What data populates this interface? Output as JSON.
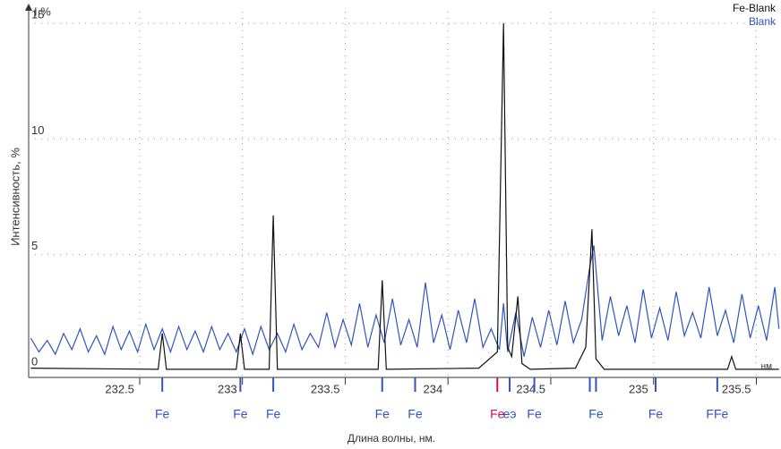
{
  "chart_data": {
    "type": "line",
    "y_label": "Интенсивность, %",
    "x_label": "Длина волны, нм.",
    "y_unit_label": "I,%",
    "x_unit_label": "нм",
    "xlim": [
      231.96,
      235.62
    ],
    "ylim": [
      -0.3,
      15.5
    ],
    "xticks": [
      232.5,
      233,
      233.5,
      234,
      234.5,
      235,
      235.5
    ],
    "yticks": [
      0,
      5,
      10,
      15
    ],
    "grid": true,
    "legend": "top-right",
    "series": [
      {
        "name": "Fe-Blank",
        "color": "#111111",
        "x": [
          231.97,
          232.59,
          232.61,
          232.63,
          232.97,
          232.99,
          233.01,
          233.13,
          233.15,
          233.17,
          233.66,
          233.68,
          233.7,
          234.15,
          234.24,
          234.27,
          234.29,
          234.31,
          234.34,
          234.36,
          234.4,
          234.62,
          234.67,
          234.7,
          234.72,
          234.76,
          235.36,
          235.38,
          235.4,
          235.61
        ],
        "values": [
          0.1,
          0.05,
          1.6,
          0.05,
          0.05,
          1.6,
          0.05,
          0.05,
          6.7,
          0.05,
          0.05,
          3.9,
          0.05,
          0.1,
          0.8,
          15.0,
          1.0,
          0.6,
          3.2,
          0.3,
          0.05,
          0.1,
          1.0,
          6.1,
          0.5,
          0.05,
          0.05,
          0.6,
          0.05,
          0.05
        ]
      },
      {
        "name": "Blank",
        "color": "#2f55c0",
        "x": [
          231.97,
          232.01,
          232.05,
          232.09,
          232.13,
          232.17,
          232.21,
          232.25,
          232.29,
          232.33,
          232.37,
          232.41,
          232.45,
          232.49,
          232.53,
          232.57,
          232.61,
          232.65,
          232.69,
          232.73,
          232.77,
          232.81,
          232.85,
          232.89,
          232.93,
          232.97,
          233.01,
          233.05,
          233.09,
          233.13,
          233.17,
          233.21,
          233.25,
          233.29,
          233.33,
          233.37,
          233.41,
          233.45,
          233.49,
          233.53,
          233.57,
          233.61,
          233.65,
          233.69,
          233.73,
          233.77,
          233.81,
          233.85,
          233.89,
          233.93,
          233.97,
          234.01,
          234.05,
          234.09,
          234.13,
          234.17,
          234.21,
          234.25,
          234.27,
          234.29,
          234.33,
          234.37,
          234.41,
          234.45,
          234.49,
          234.53,
          234.57,
          234.61,
          234.65,
          234.69,
          234.71,
          234.75,
          234.79,
          234.83,
          234.87,
          234.91,
          234.95,
          234.99,
          235.03,
          235.07,
          235.11,
          235.15,
          235.19,
          235.23,
          235.27,
          235.31,
          235.35,
          235.39,
          235.43,
          235.47,
          235.51,
          235.55,
          235.59,
          235.61
        ],
        "values": [
          1.4,
          0.8,
          1.3,
          0.7,
          1.6,
          0.9,
          1.8,
          0.8,
          1.5,
          0.7,
          1.9,
          0.9,
          1.7,
          0.8,
          2.0,
          0.9,
          1.8,
          0.8,
          1.9,
          0.9,
          1.7,
          0.8,
          1.9,
          0.9,
          1.6,
          0.8,
          1.8,
          0.7,
          1.9,
          0.9,
          1.6,
          0.8,
          2.0,
          0.9,
          1.6,
          1.0,
          2.5,
          1.0,
          2.2,
          1.1,
          2.9,
          1.0,
          2.4,
          1.2,
          3.1,
          1.1,
          2.2,
          1.0,
          3.8,
          1.2,
          2.4,
          0.9,
          2.6,
          1.2,
          3.1,
          1.0,
          1.8,
          0.9,
          2.9,
          0.8,
          2.5,
          0.6,
          2.3,
          1.0,
          2.6,
          1.1,
          3.0,
          1.2,
          2.2,
          4.5,
          5.4,
          1.3,
          3.2,
          1.5,
          2.8,
          1.2,
          3.5,
          1.4,
          2.7,
          1.3,
          3.4,
          1.5,
          2.5,
          1.4,
          3.6,
          1.5,
          2.6,
          1.2,
          3.3,
          1.4,
          2.8,
          1.3,
          3.6,
          1.8
        ]
      }
    ],
    "markers": [
      {
        "x": 232.61,
        "label": "Fe",
        "color": "#2f55c0"
      },
      {
        "x": 232.99,
        "label": "Fe",
        "color": "#2f55c0"
      },
      {
        "x": 233.15,
        "label": "Fe",
        "color": "#2f55c0"
      },
      {
        "x": 233.68,
        "label": "Fe",
        "color": "#2f55c0"
      },
      {
        "x": 233.84,
        "label": "Fe",
        "color": "#2f55c0"
      },
      {
        "x": 234.24,
        "label": "Fe",
        "color": "#d01050"
      },
      {
        "x": 234.3,
        "label": "eэ",
        "color": "#2f55c0"
      },
      {
        "x": 234.42,
        "label": "Fe",
        "color": "#2f55c0"
      },
      {
        "x": 234.69,
        "color": "#2f55c0"
      },
      {
        "x": 234.72,
        "label": "Fe",
        "color": "#2f55c0"
      },
      {
        "x": 235.01,
        "label": "Fe",
        "color": "#2f55c0"
      },
      {
        "x": 235.31,
        "label": "FFe",
        "color": "#2f55c0"
      }
    ]
  }
}
